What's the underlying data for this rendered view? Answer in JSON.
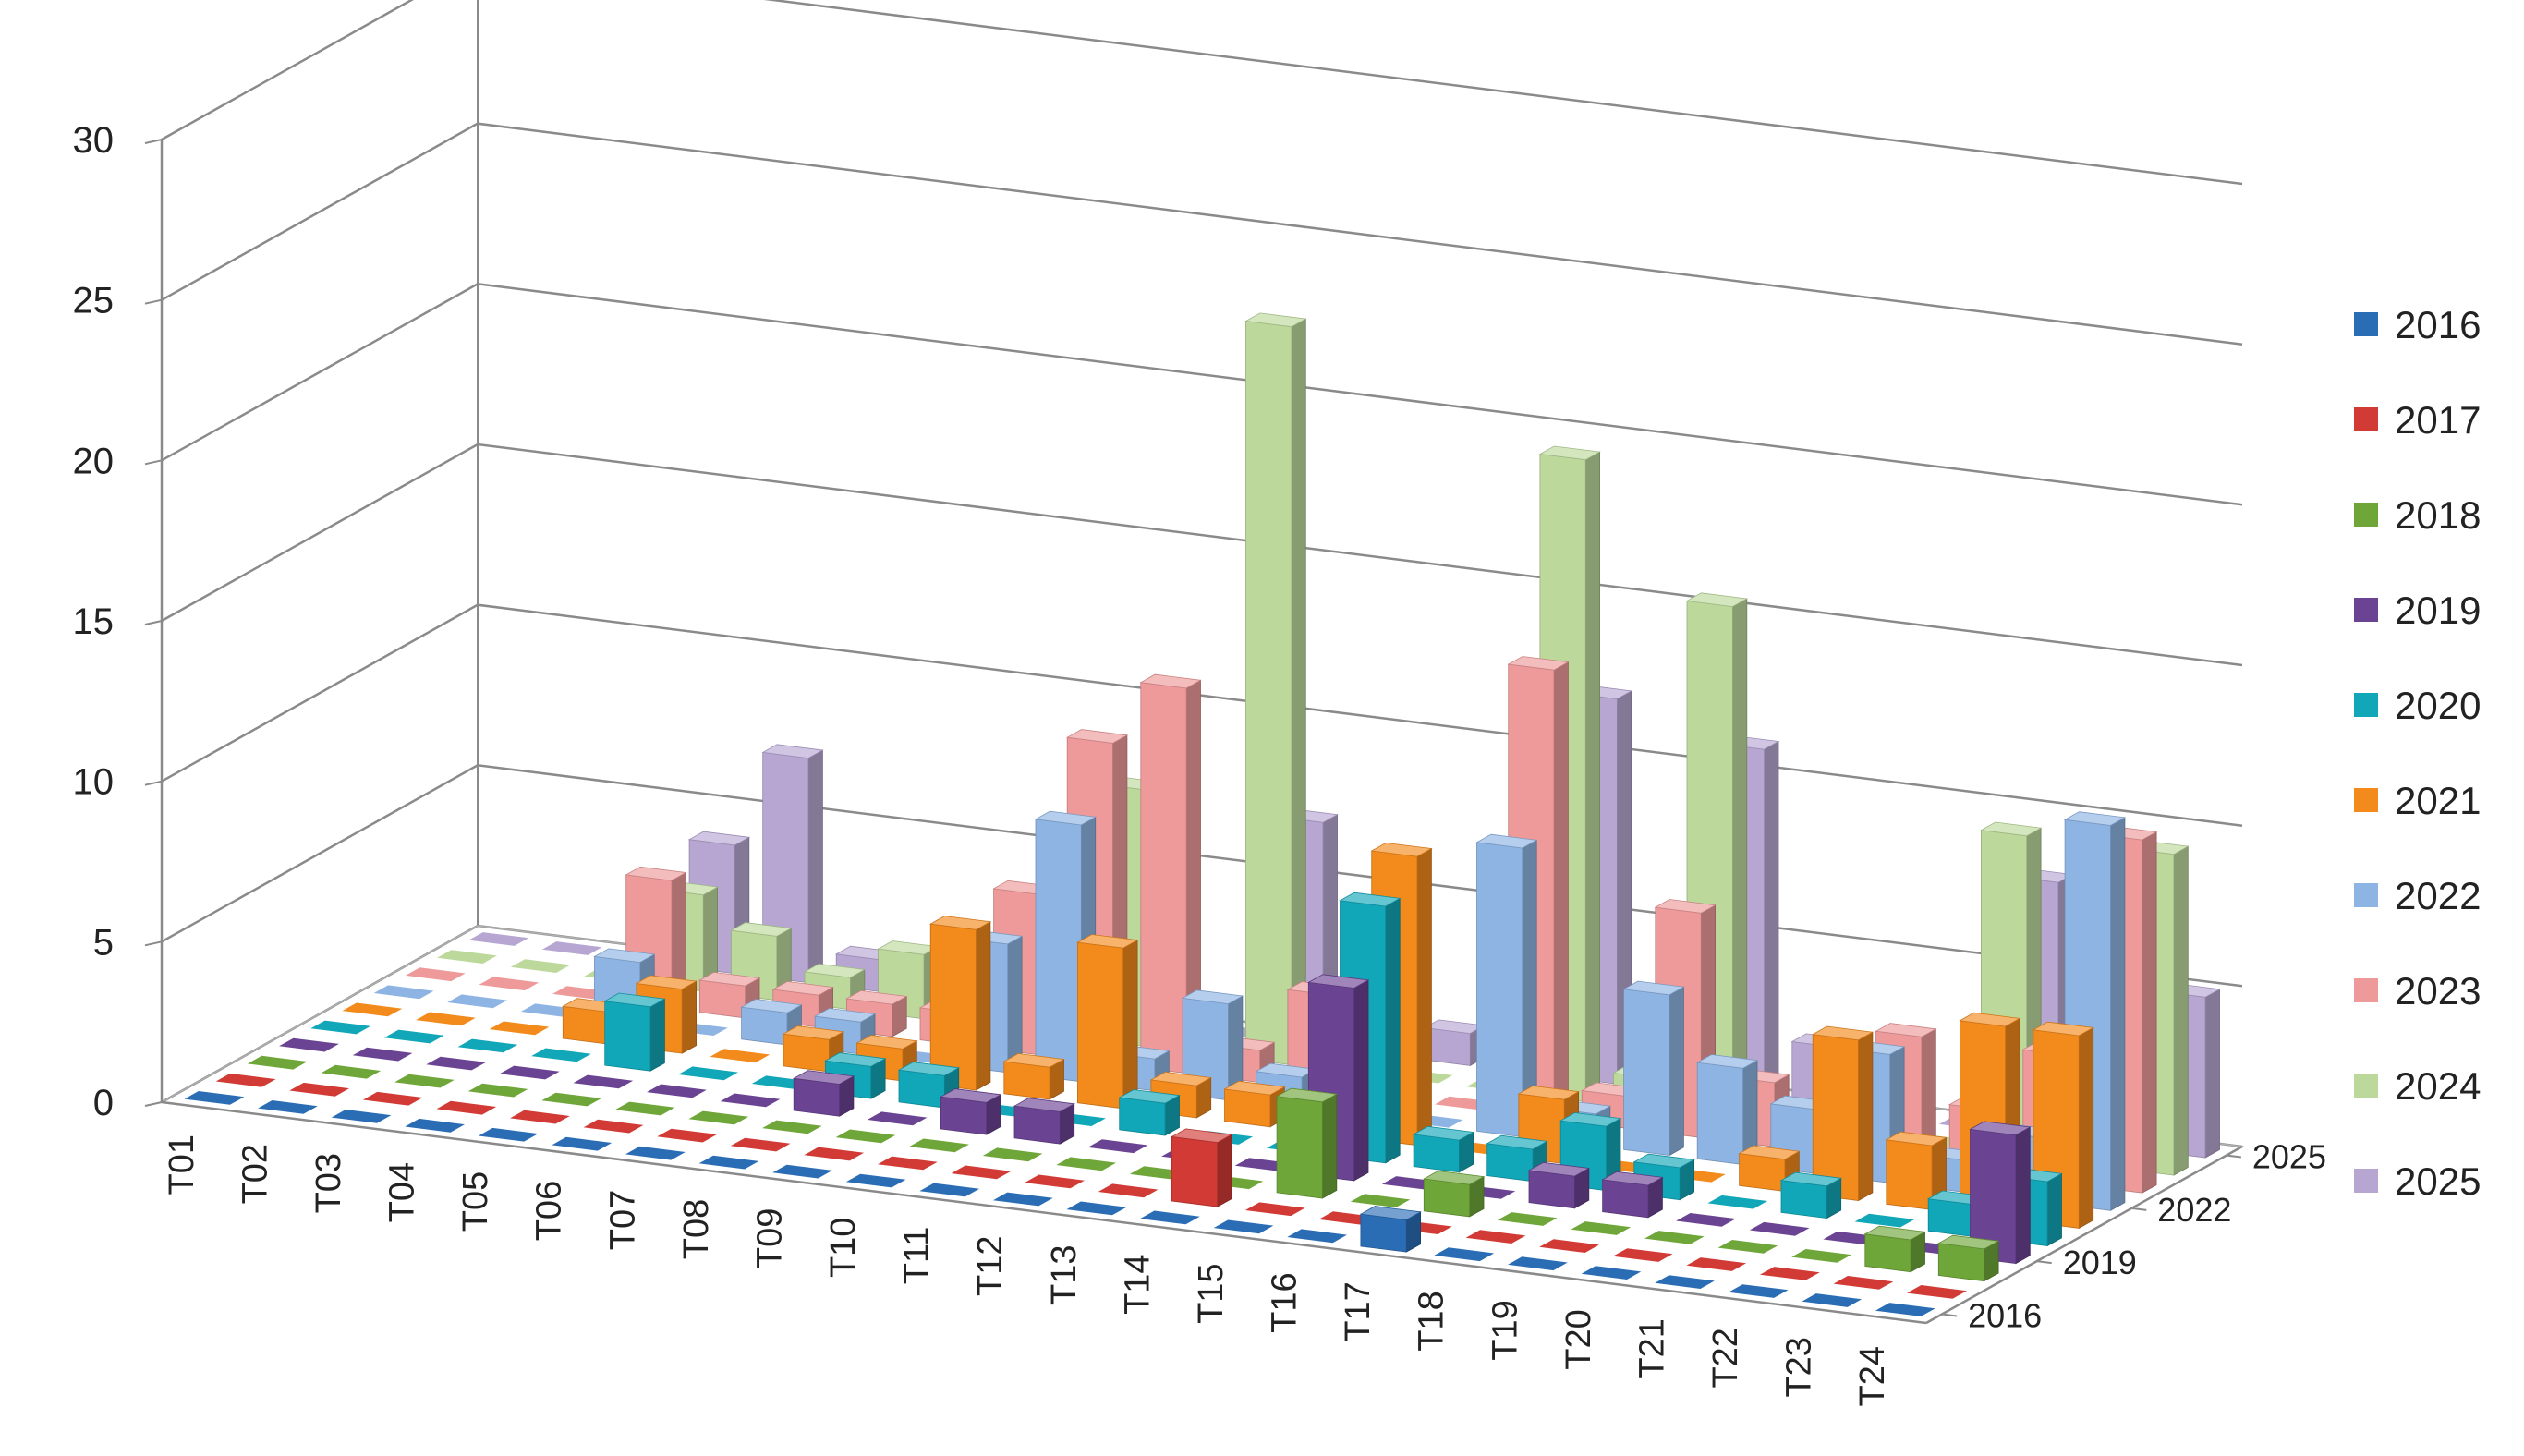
{
  "colors": {
    "2016": "#2a6db5",
    "2017": "#d13a35",
    "2018": "#6fa63a",
    "2019": "#6b4393",
    "2020": "#12a7b8",
    "2021": "#f28a1c",
    "2022": "#8eb4e3",
    "2023": "#ee9a9a",
    "2024": "#bcd99b",
    "2025": "#b7a6d2"
  },
  "chart_data": {
    "type": "bar",
    "subtype": "3d-column",
    "title": "",
    "xlabel": "",
    "ylabel": "",
    "ylim": [
      0,
      30
    ],
    "y_ticks": [
      "0",
      "5",
      "10",
      "15",
      "20",
      "25",
      "30"
    ],
    "grid": true,
    "legend_position": "right",
    "categories": [
      "T01",
      "T02",
      "T03",
      "T04",
      "T05",
      "T06",
      "T07",
      "T08",
      "T09",
      "T10",
      "T11",
      "T12",
      "T13",
      "T14",
      "T15",
      "T16",
      "T17",
      "T18",
      "T19",
      "T20",
      "T21",
      "T22",
      "T23",
      "T24"
    ],
    "depth_tick_labels": [
      "2016",
      "2019",
      "2022",
      "2025"
    ],
    "series": [
      {
        "name": "2016",
        "values": [
          0,
          0,
          0,
          0,
          0,
          0,
          0,
          0,
          0,
          0,
          0,
          0,
          0,
          0,
          0,
          0,
          1,
          0,
          0,
          0,
          0,
          0,
          0,
          0
        ]
      },
      {
        "name": "2017",
        "values": [
          0,
          0,
          0,
          0,
          0,
          0,
          0,
          0,
          0,
          0,
          0,
          0,
          0,
          2,
          0,
          0,
          0,
          0,
          0,
          0,
          0,
          0,
          0,
          0
        ]
      },
      {
        "name": "2018",
        "values": [
          0,
          0,
          0,
          0,
          0,
          0,
          0,
          0,
          0,
          0,
          0,
          0,
          0,
          0,
          3,
          0,
          1,
          0,
          0,
          0,
          0,
          0,
          1,
          1
        ]
      },
      {
        "name": "2019",
        "values": [
          0,
          0,
          0,
          0,
          0,
          0,
          0,
          1,
          0,
          1,
          1,
          0,
          0,
          0,
          6,
          0,
          0,
          1,
          1,
          0,
          0,
          0,
          0,
          4
        ]
      },
      {
        "name": "2020",
        "values": [
          0,
          0,
          0,
          0,
          2,
          0,
          0,
          1,
          1,
          0,
          0,
          1,
          0,
          0,
          8,
          1,
          1,
          2,
          1,
          0,
          1,
          0,
          1,
          2
        ]
      },
      {
        "name": "2021",
        "values": [
          0,
          0,
          0,
          1,
          2,
          0,
          1,
          1,
          5,
          1,
          5,
          1,
          1,
          0,
          9,
          0,
          2,
          0,
          0,
          1,
          5,
          2,
          6,
          6
        ]
      },
      {
        "name": "2022",
        "values": [
          0,
          0,
          0,
          2,
          0,
          1,
          1,
          0,
          4,
          8,
          1,
          3,
          1,
          0,
          0,
          9,
          1,
          5,
          3,
          2,
          4,
          1,
          2,
          12
        ]
      },
      {
        "name": "2023",
        "values": [
          0,
          0,
          0,
          4,
          1,
          1,
          1,
          1,
          5,
          10,
          12,
          1,
          3,
          2,
          0,
          14,
          1,
          7,
          2,
          1,
          4,
          2,
          4,
          11
        ]
      },
      {
        "name": "2024",
        "values": [
          0,
          0,
          0,
          3,
          2,
          1,
          2,
          0,
          0,
          8,
          0,
          23,
          1,
          0,
          0,
          20,
          1,
          16,
          0,
          1,
          0,
          10,
          3,
          10
        ]
      },
      {
        "name": "2025",
        "values": [
          0,
          0,
          0,
          4,
          7,
          1,
          1,
          0,
          0,
          7,
          0,
          7,
          0,
          1,
          2,
          12,
          0,
          11,
          2,
          1,
          0,
          8,
          0,
          5
        ]
      }
    ]
  }
}
